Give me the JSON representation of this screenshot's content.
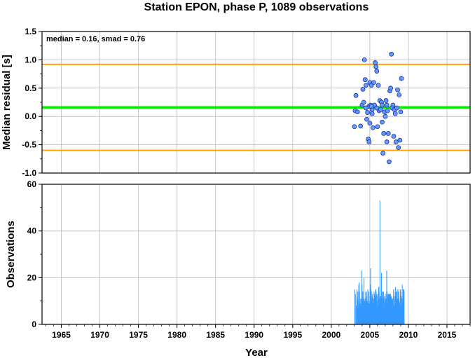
{
  "chart_data": [
    {
      "type": "scatter",
      "title": "Station EPON, phase P, 1089 observations",
      "ylabel": "Median residual [s]",
      "annotation": "median = 0.16, smad = 0.76",
      "xlim": [
        1962.5,
        2018
      ],
      "ylim": [
        -1.0,
        1.5
      ],
      "yticks": [
        "1.5",
        "1.0",
        "0.5",
        "0.0",
        "-0.5",
        "-1.0"
      ],
      "grid": true,
      "colors": {
        "points": "#6699ff",
        "median_line": "#00ee00",
        "smad_lines": "#ffa500"
      },
      "reference_lines": {
        "median": 0.16,
        "upper": 0.92,
        "lower": -0.6
      },
      "points": [
        [
          2003.0,
          -0.18
        ],
        [
          2003.1,
          0.1
        ],
        [
          2003.2,
          0.37
        ],
        [
          2003.4,
          0.08
        ],
        [
          2003.8,
          -0.17
        ],
        [
          2004.0,
          0.2
        ],
        [
          2004.1,
          0.48
        ],
        [
          2004.2,
          0.25
        ],
        [
          2004.3,
          1.0
        ],
        [
          2004.4,
          0.65
        ],
        [
          2004.5,
          0.55
        ],
        [
          2004.6,
          -0.05
        ],
        [
          2004.7,
          0.07
        ],
        [
          2004.8,
          -0.4
        ],
        [
          2004.9,
          -0.45
        ],
        [
          2004.9,
          0.18
        ],
        [
          2005.0,
          0.6
        ],
        [
          2005.0,
          -0.12
        ],
        [
          2005.1,
          0.2
        ],
        [
          2005.2,
          0.55
        ],
        [
          2005.3,
          0.05
        ],
        [
          2005.3,
          0.12
        ],
        [
          2005.4,
          -0.2
        ],
        [
          2005.5,
          0.6
        ],
        [
          2005.6,
          0.2
        ],
        [
          2005.7,
          0.95
        ],
        [
          2005.8,
          0.88
        ],
        [
          2005.9,
          0.8
        ],
        [
          2005.9,
          0.15
        ],
        [
          2006.0,
          -0.18
        ],
        [
          2006.1,
          0.55
        ],
        [
          2006.2,
          0.1
        ],
        [
          2006.3,
          0.28
        ],
        [
          2006.4,
          0.12
        ],
        [
          2006.5,
          0.25
        ],
        [
          2006.6,
          -0.1
        ],
        [
          2006.6,
          0.2
        ],
        [
          2006.7,
          -0.65
        ],
        [
          2006.8,
          -0.3
        ],
        [
          2006.9,
          0.08
        ],
        [
          2007.0,
          0.0
        ],
        [
          2007.1,
          0.28
        ],
        [
          2007.2,
          -0.45
        ],
        [
          2007.3,
          0.1
        ],
        [
          2007.4,
          -0.3
        ],
        [
          2007.5,
          -0.8
        ],
        [
          2007.6,
          0.45
        ],
        [
          2007.7,
          0.5
        ],
        [
          2007.8,
          1.1
        ],
        [
          2007.9,
          0.15
        ],
        [
          2008.0,
          0.2
        ],
        [
          2008.1,
          -0.35
        ],
        [
          2008.2,
          0.12
        ],
        [
          2008.3,
          0.05
        ],
        [
          2008.4,
          -0.45
        ],
        [
          2008.5,
          0.15
        ],
        [
          2008.6,
          0.47
        ],
        [
          2008.7,
          -0.55
        ],
        [
          2008.8,
          0.38
        ],
        [
          2008.9,
          -0.42
        ],
        [
          2009.0,
          0.08
        ],
        [
          2009.1,
          0.67
        ],
        [
          2007.2,
          0.2
        ],
        [
          2005.2,
          0.18
        ],
        [
          2004.5,
          0.15
        ]
      ]
    },
    {
      "type": "bar",
      "xlabel": "Year",
      "ylabel": "Observations",
      "xlim": [
        1962.5,
        2018
      ],
      "ylim": [
        0,
        60
      ],
      "yticks": [
        "60",
        "40",
        "20",
        "0"
      ],
      "xticks": [
        "1965",
        "1970",
        "1975",
        "1980",
        "1985",
        "1990",
        "1995",
        "2000",
        "2005",
        "2010",
        "2015"
      ],
      "grid": true,
      "colors": {
        "bars": "#3399ff"
      },
      "bar_width_years": 0.02,
      "x": [],
      "values": []
    }
  ]
}
